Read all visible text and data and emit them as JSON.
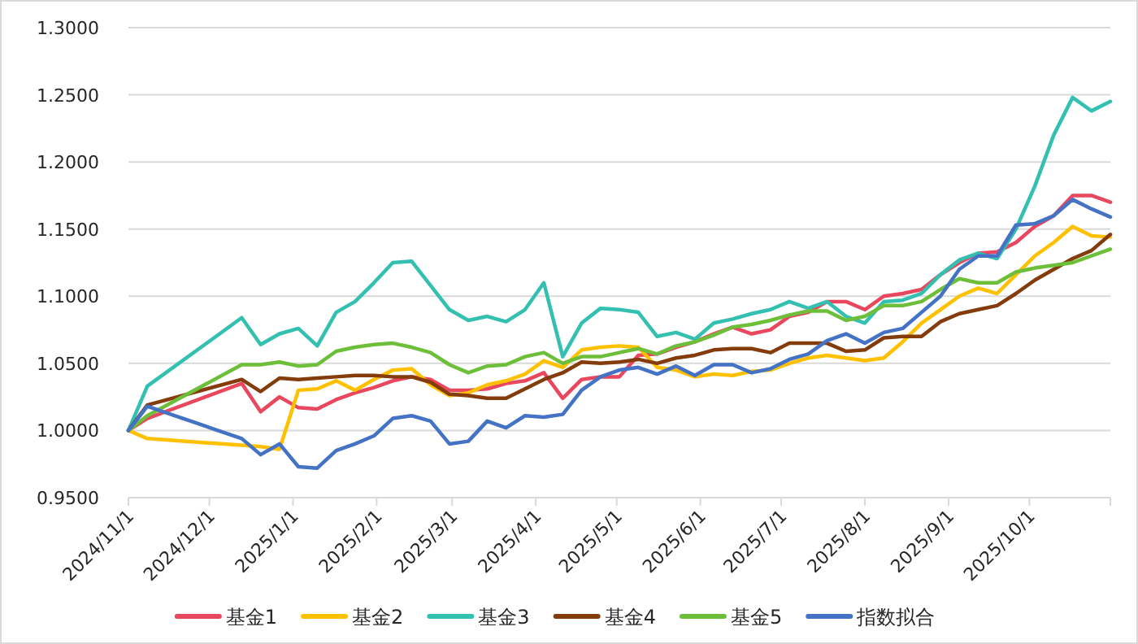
{
  "chart_data": {
    "type": "line",
    "x": [
      "2024-11-01",
      "2024-11-08",
      "2024-12-13",
      "2024-12-20",
      "2024-12-27",
      "2025-01-03",
      "2025-01-10",
      "2025-01-17",
      "2025-01-24",
      "2025-01-31",
      "2025-02-07",
      "2025-02-14",
      "2025-02-21",
      "2025-02-28",
      "2025-03-07",
      "2025-03-14",
      "2025-03-21",
      "2025-03-28",
      "2025-04-04",
      "2025-04-11",
      "2025-04-18",
      "2025-04-25",
      "2025-05-02",
      "2025-05-09",
      "2025-05-16",
      "2025-05-23",
      "2025-05-30",
      "2025-06-06",
      "2025-06-13",
      "2025-06-20",
      "2025-06-27",
      "2025-07-04",
      "2025-07-11",
      "2025-07-18",
      "2025-07-25",
      "2025-08-01",
      "2025-08-08",
      "2025-08-15",
      "2025-08-22",
      "2025-08-29",
      "2025-09-05",
      "2025-09-12",
      "2025-09-19",
      "2025-09-26",
      "2025-10-03",
      "2025-10-10",
      "2025-10-17",
      "2025-10-24",
      "2025-10-31"
    ],
    "series": [
      {
        "name": "基金1",
        "color": "#e8475e",
        "values": [
          1.0,
          1.009,
          1.035,
          1.014,
          1.025,
          1.017,
          1.016,
          1.023,
          1.028,
          1.032,
          1.037,
          1.04,
          1.038,
          1.03,
          1.03,
          1.031,
          1.035,
          1.037,
          1.043,
          1.024,
          1.038,
          1.04,
          1.04,
          1.056,
          1.057,
          1.062,
          1.066,
          1.072,
          1.077,
          1.072,
          1.075,
          1.085,
          1.088,
          1.096,
          1.096,
          1.09,
          1.1,
          1.102,
          1.105,
          1.116,
          1.125,
          1.132,
          1.133,
          1.14,
          1.152,
          1.16,
          1.175,
          1.175,
          1.17
        ]
      },
      {
        "name": "基金2",
        "color": "#ffc000",
        "values": [
          1.0,
          0.994,
          0.989,
          0.988,
          0.986,
          1.03,
          1.031,
          1.037,
          1.03,
          1.038,
          1.045,
          1.046,
          1.034,
          1.026,
          1.028,
          1.034,
          1.037,
          1.042,
          1.052,
          1.047,
          1.06,
          1.062,
          1.063,
          1.062,
          1.047,
          1.045,
          1.04,
          1.042,
          1.041,
          1.044,
          1.045,
          1.05,
          1.054,
          1.056,
          1.054,
          1.052,
          1.054,
          1.066,
          1.08,
          1.09,
          1.1,
          1.106,
          1.102,
          1.116,
          1.13,
          1.14,
          1.152,
          1.145,
          1.144
        ]
      },
      {
        "name": "基金3",
        "color": "#33c0b0",
        "values": [
          1.0,
          1.033,
          1.084,
          1.064,
          1.072,
          1.076,
          1.063,
          1.088,
          1.096,
          1.11,
          1.125,
          1.126,
          1.108,
          1.09,
          1.082,
          1.085,
          1.081,
          1.09,
          1.11,
          1.055,
          1.08,
          1.091,
          1.09,
          1.088,
          1.07,
          1.073,
          1.068,
          1.08,
          1.083,
          1.087,
          1.09,
          1.096,
          1.091,
          1.096,
          1.085,
          1.08,
          1.096,
          1.097,
          1.102,
          1.116,
          1.127,
          1.132,
          1.128,
          1.15,
          1.182,
          1.22,
          1.248,
          1.238,
          1.245
        ]
      },
      {
        "name": "基金4",
        "color": "#843c0c",
        "values": [
          1.0,
          1.019,
          1.038,
          1.029,
          1.039,
          1.038,
          1.039,
          1.04,
          1.041,
          1.041,
          1.04,
          1.04,
          1.036,
          1.027,
          1.026,
          1.024,
          1.024,
          1.031,
          1.038,
          1.043,
          1.051,
          1.05,
          1.051,
          1.053,
          1.05,
          1.054,
          1.056,
          1.06,
          1.061,
          1.061,
          1.058,
          1.065,
          1.065,
          1.065,
          1.059,
          1.06,
          1.069,
          1.07,
          1.07,
          1.081,
          1.087,
          1.09,
          1.093,
          1.102,
          1.112,
          1.12,
          1.128,
          1.134,
          1.146
        ]
      },
      {
        "name": "基金5",
        "color": "#6dbf3a",
        "values": [
          1.0,
          1.011,
          1.049,
          1.049,
          1.051,
          1.048,
          1.049,
          1.059,
          1.062,
          1.064,
          1.065,
          1.062,
          1.058,
          1.049,
          1.043,
          1.048,
          1.049,
          1.055,
          1.058,
          1.05,
          1.055,
          1.055,
          1.058,
          1.061,
          1.057,
          1.063,
          1.066,
          1.071,
          1.077,
          1.079,
          1.082,
          1.086,
          1.089,
          1.089,
          1.082,
          1.085,
          1.093,
          1.093,
          1.096,
          1.105,
          1.113,
          1.11,
          1.11,
          1.118,
          1.121,
          1.123,
          1.125,
          1.13,
          1.135
        ]
      },
      {
        "name": "指数拟合",
        "color": "#4472c4",
        "values": [
          1.0,
          1.018,
          0.994,
          0.982,
          0.99,
          0.973,
          0.972,
          0.985,
          0.99,
          0.996,
          1.009,
          1.011,
          1.007,
          0.99,
          0.992,
          1.007,
          1.002,
          1.011,
          1.01,
          1.012,
          1.03,
          1.04,
          1.045,
          1.047,
          1.042,
          1.048,
          1.041,
          1.049,
          1.049,
          1.043,
          1.046,
          1.053,
          1.057,
          1.067,
          1.072,
          1.065,
          1.073,
          1.076,
          1.088,
          1.1,
          1.12,
          1.13,
          1.13,
          1.153,
          1.154,
          1.16,
          1.172,
          1.165,
          1.159
        ]
      }
    ],
    "xlim": [
      "2024-11-01",
      "2025-10-31"
    ],
    "xticks": [
      {
        "value": "2024-11-01",
        "label": "2024/11/1"
      },
      {
        "value": "2024-12-01",
        "label": "2024/12/1"
      },
      {
        "value": "2025-01-01",
        "label": "2025/1/1"
      },
      {
        "value": "2025-02-01",
        "label": "2025/2/1"
      },
      {
        "value": "2025-03-01",
        "label": "2025/3/1"
      },
      {
        "value": "2025-04-01",
        "label": "2025/4/1"
      },
      {
        "value": "2025-05-01",
        "label": "2025/5/1"
      },
      {
        "value": "2025-06-01",
        "label": "2025/6/1"
      },
      {
        "value": "2025-07-01",
        "label": "2025/7/1"
      },
      {
        "value": "2025-08-01",
        "label": "2025/8/1"
      },
      {
        "value": "2025-09-01",
        "label": "2025/9/1"
      },
      {
        "value": "2025-10-01",
        "label": "2025/10/1"
      }
    ],
    "ylim": [
      0.95,
      1.3
    ],
    "yticks": [
      {
        "value": 0.95,
        "label": "0.9500"
      },
      {
        "value": 1.0,
        "label": "1.0000"
      },
      {
        "value": 1.05,
        "label": "1.0500"
      },
      {
        "value": 1.1,
        "label": "1.1000"
      },
      {
        "value": 1.15,
        "label": "1.1500"
      },
      {
        "value": 1.2,
        "label": "1.2000"
      },
      {
        "value": 1.25,
        "label": "1.2500"
      },
      {
        "value": 1.3,
        "label": "1.3000"
      }
    ],
    "grid": "y",
    "legend": "bottom"
  }
}
